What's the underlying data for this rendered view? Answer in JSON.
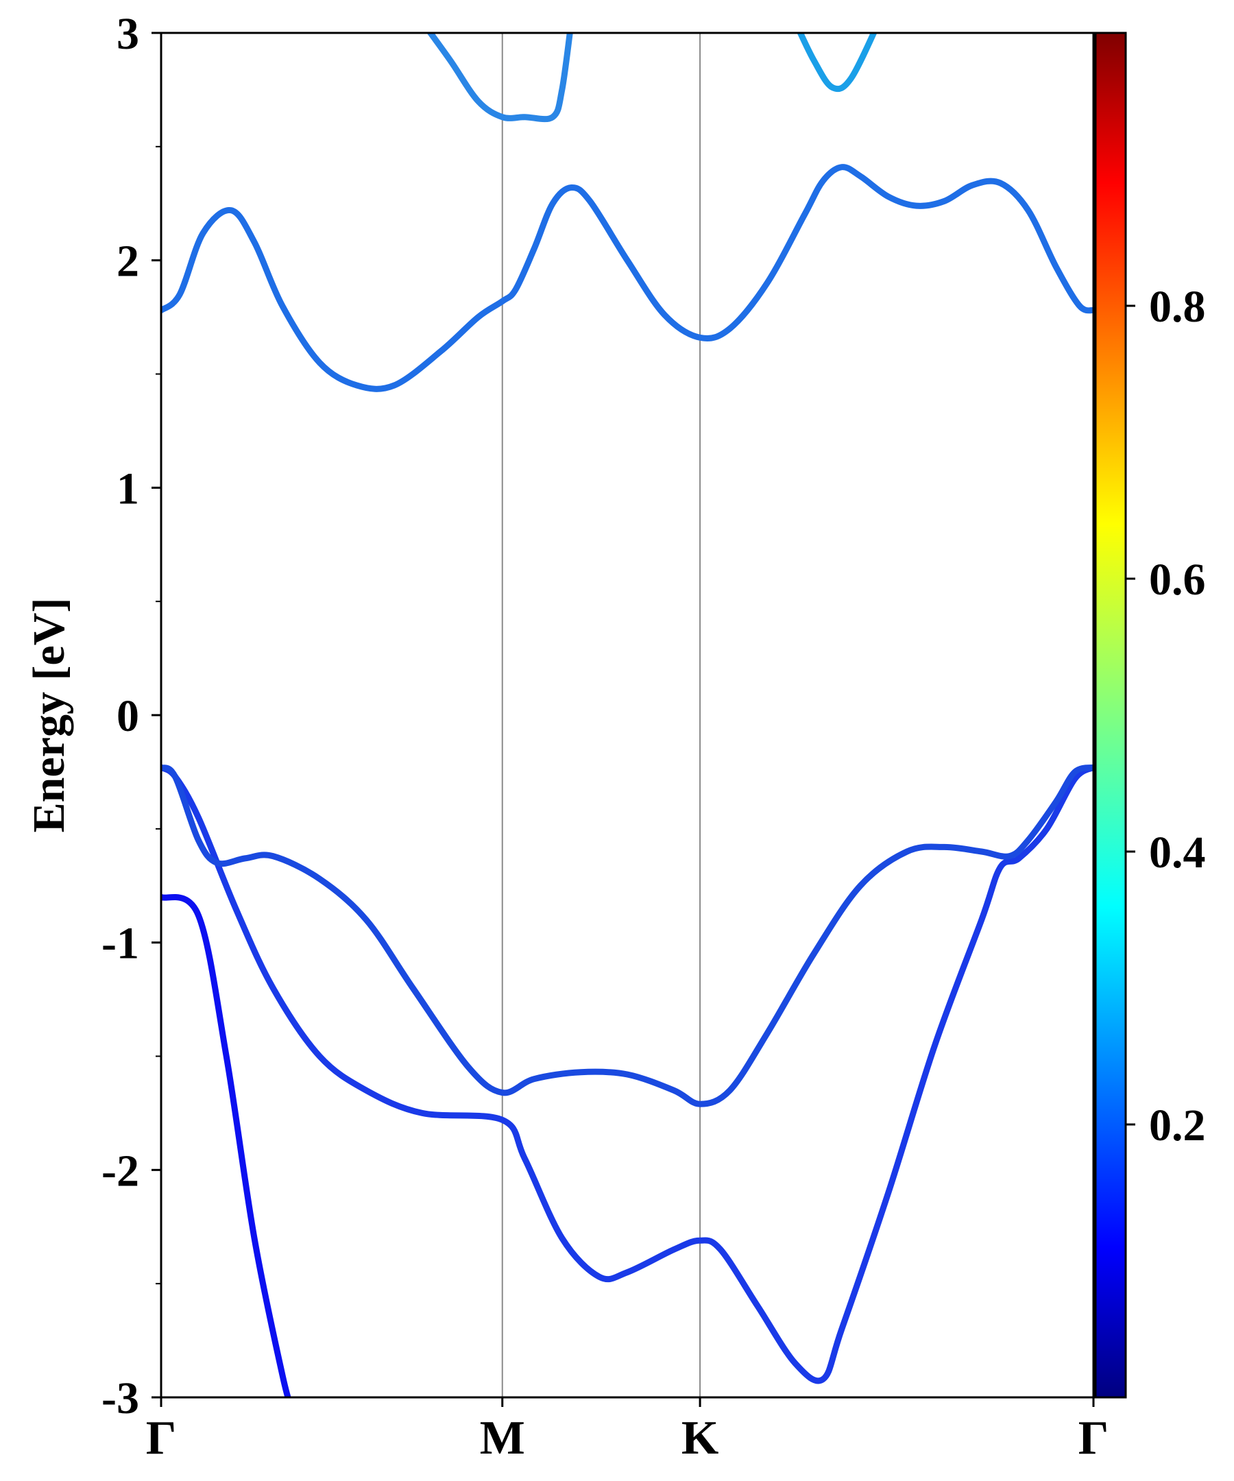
{
  "chart_data": {
    "type": "line",
    "title": "",
    "ylabel": "Energy [eV]",
    "xlabel": "",
    "ylim": [
      -3,
      3
    ],
    "xlim": [
      0,
      1
    ],
    "grid": false,
    "y_ticks": [
      {
        "value": 3,
        "label": "3"
      },
      {
        "value": 2,
        "label": "2"
      },
      {
        "value": 1,
        "label": "1"
      },
      {
        "value": 0,
        "label": "0"
      },
      {
        "value": -1,
        "label": "-1"
      },
      {
        "value": -2,
        "label": "-2"
      },
      {
        "value": -3,
        "label": "-3"
      }
    ],
    "y_minor_ticks": [
      2.5,
      1.5,
      0.5,
      -0.5,
      -1.5,
      -2.5
    ],
    "x_ticks": [
      {
        "value": 0.0,
        "label": "Γ"
      },
      {
        "value": 0.366,
        "label": "M"
      },
      {
        "value": 0.578,
        "label": "K"
      },
      {
        "value": 1.0,
        "label": "Γ"
      }
    ],
    "colorbar": {
      "colormap": "jet",
      "range": [
        0,
        1
      ],
      "ticks": [
        {
          "value": 0.2,
          "label": "0.2"
        },
        {
          "value": 0.4,
          "label": "0.4"
        },
        {
          "value": 0.6,
          "label": "0.6"
        },
        {
          "value": 0.8,
          "label": "0.8"
        }
      ]
    },
    "series": [
      {
        "color": "#0c10f0",
        "points": [
          [
            0.0,
            -0.8
          ],
          [
            0.04,
            -0.88
          ],
          [
            0.07,
            -1.5
          ],
          [
            0.1,
            -2.3
          ],
          [
            0.13,
            -2.9
          ],
          [
            0.14,
            -3.05
          ]
        ]
      },
      {
        "color": "#1a3ae8",
        "points": [
          [
            0.0,
            -0.23
          ],
          [
            0.015,
            -0.27
          ],
          [
            0.04,
            -0.45
          ],
          [
            0.08,
            -0.85
          ],
          [
            0.12,
            -1.2
          ],
          [
            0.17,
            -1.5
          ],
          [
            0.22,
            -1.65
          ],
          [
            0.28,
            -1.75
          ],
          [
            0.366,
            -1.78
          ],
          [
            0.39,
            -1.95
          ],
          [
            0.43,
            -2.3
          ],
          [
            0.47,
            -2.47
          ],
          [
            0.5,
            -2.45
          ],
          [
            0.55,
            -2.35
          ],
          [
            0.578,
            -2.31
          ],
          [
            0.6,
            -2.35
          ],
          [
            0.64,
            -2.6
          ],
          [
            0.68,
            -2.85
          ],
          [
            0.71,
            -2.92
          ],
          [
            0.73,
            -2.7
          ],
          [
            0.78,
            -2.1
          ],
          [
            0.83,
            -1.45
          ],
          [
            0.88,
            -0.9
          ],
          [
            0.9,
            -0.67
          ],
          [
            0.92,
            -0.63
          ],
          [
            0.95,
            -0.5
          ],
          [
            0.98,
            -0.28
          ],
          [
            1.0,
            -0.23
          ]
        ]
      },
      {
        "color": "#1a4ae0",
        "points": [
          [
            0.0,
            -0.23
          ],
          [
            0.015,
            -0.27
          ],
          [
            0.04,
            -0.55
          ],
          [
            0.06,
            -0.65
          ],
          [
            0.09,
            -0.63
          ],
          [
            0.12,
            -0.62
          ],
          [
            0.17,
            -0.72
          ],
          [
            0.22,
            -0.9
          ],
          [
            0.27,
            -1.2
          ],
          [
            0.33,
            -1.55
          ],
          [
            0.366,
            -1.66
          ],
          [
            0.4,
            -1.6
          ],
          [
            0.45,
            -1.57
          ],
          [
            0.5,
            -1.58
          ],
          [
            0.55,
            -1.65
          ],
          [
            0.578,
            -1.71
          ],
          [
            0.61,
            -1.65
          ],
          [
            0.65,
            -1.4
          ],
          [
            0.7,
            -1.05
          ],
          [
            0.75,
            -0.75
          ],
          [
            0.8,
            -0.6
          ],
          [
            0.84,
            -0.58
          ],
          [
            0.88,
            -0.6
          ],
          [
            0.91,
            -0.62
          ],
          [
            0.93,
            -0.55
          ],
          [
            0.96,
            -0.38
          ],
          [
            0.98,
            -0.25
          ],
          [
            1.0,
            -0.23
          ]
        ]
      },
      {
        "color": "#1f6ee6",
        "points": [
          [
            0.0,
            1.78
          ],
          [
            0.02,
            1.85
          ],
          [
            0.045,
            2.12
          ],
          [
            0.075,
            2.22
          ],
          [
            0.1,
            2.08
          ],
          [
            0.13,
            1.8
          ],
          [
            0.17,
            1.55
          ],
          [
            0.21,
            1.45
          ],
          [
            0.25,
            1.45
          ],
          [
            0.3,
            1.6
          ],
          [
            0.34,
            1.75
          ],
          [
            0.366,
            1.82
          ],
          [
            0.38,
            1.87
          ],
          [
            0.4,
            2.05
          ],
          [
            0.42,
            2.25
          ],
          [
            0.44,
            2.32
          ],
          [
            0.46,
            2.26
          ],
          [
            0.5,
            2.0
          ],
          [
            0.54,
            1.76
          ],
          [
            0.578,
            1.66
          ],
          [
            0.61,
            1.7
          ],
          [
            0.65,
            1.9
          ],
          [
            0.69,
            2.2
          ],
          [
            0.71,
            2.35
          ],
          [
            0.73,
            2.41
          ],
          [
            0.75,
            2.37
          ],
          [
            0.78,
            2.28
          ],
          [
            0.81,
            2.24
          ],
          [
            0.84,
            2.26
          ],
          [
            0.87,
            2.33
          ],
          [
            0.9,
            2.34
          ],
          [
            0.93,
            2.22
          ],
          [
            0.96,
            1.97
          ],
          [
            0.985,
            1.8
          ],
          [
            1.0,
            1.78
          ]
        ]
      },
      {
        "color": "#2a86e6",
        "points": [
          [
            0.28,
            3.05
          ],
          [
            0.31,
            2.88
          ],
          [
            0.34,
            2.7
          ],
          [
            0.366,
            2.63
          ],
          [
            0.39,
            2.63
          ],
          [
            0.42,
            2.63
          ],
          [
            0.43,
            2.75
          ],
          [
            0.44,
            3.05
          ]
        ]
      },
      {
        "color": "#1a9fe8",
        "points": [
          [
            0.68,
            3.05
          ],
          [
            0.7,
            2.88
          ],
          [
            0.72,
            2.76
          ],
          [
            0.74,
            2.8
          ],
          [
            0.77,
            3.05
          ]
        ]
      }
    ]
  }
}
